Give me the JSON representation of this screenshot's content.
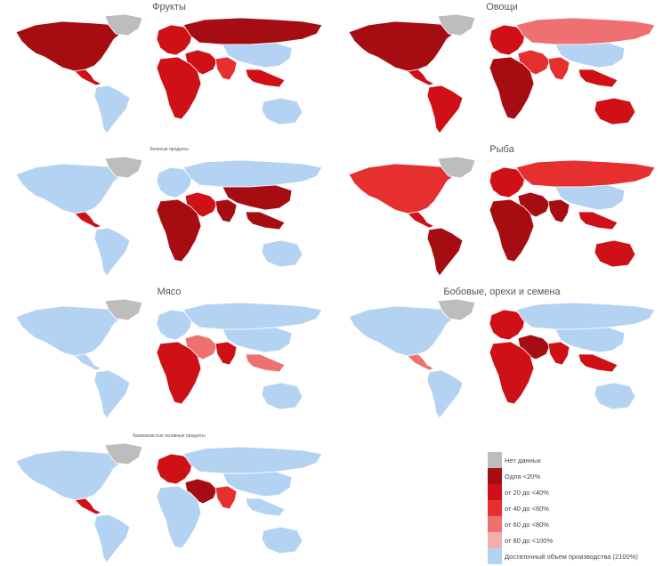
{
  "panels": [
    {
      "title": "Фрукты",
      "title_size": "normal",
      "ocean_fill": "#a9c8ec"
    },
    {
      "title": "Овощи",
      "title_size": "normal",
      "ocean_fill": "#a9c8ec"
    },
    {
      "title": "Зеленые продукты",
      "title_size": "small",
      "ocean_fill": "#a9c8ec"
    },
    {
      "title": "Рыба",
      "title_size": "normal",
      "ocean_fill": "#a9c8ec"
    },
    {
      "title": "Мясо",
      "title_size": "normal",
      "ocean_fill": "#a9c8ec"
    },
    {
      "title": "Бобовые, орехи и семена",
      "title_size": "normal",
      "ocean_fill": "#a9c8ec"
    },
    {
      "title": "Крахмалистые основные продукты",
      "title_size": "small",
      "ocean_fill": "#a9c8ec"
    }
  ],
  "colors": {
    "no_data": "#bdbdbd",
    "c20": "#a50d12",
    "c40": "#cf1016",
    "c60": "#e63030",
    "c80": "#ef7070",
    "c100": "#f5aeb0",
    "sufficient": "#b4d3f2",
    "border": "#ffffff"
  },
  "legend": {
    "items": [
      {
        "label": "Нет данных",
        "color": "#bdbdbd"
      },
      {
        "label": "Oдля <20%",
        "color": "#a50d12"
      },
      {
        "label": "от 20 до <40%",
        "color": "#cf1016"
      },
      {
        "label": "от 40 до <60%",
        "color": "#e63030"
      },
      {
        "label": "от 60 до <80%",
        "color": "#ef7070"
      },
      {
        "label": "от 80 до <100%",
        "color": "#f5aeb0"
      },
      {
        "label": "Достаточный объем производства (2100%)",
        "color": "#b4d3f2"
      }
    ]
  },
  "regions": [
    "north-america",
    "greenland",
    "central-america",
    "south-america",
    "europe",
    "russia",
    "middle-east",
    "africa",
    "south-asia",
    "east-asia",
    "southeast-asia",
    "australia"
  ],
  "map_levels": [
    {
      "north-america": "c20",
      "greenland": "no_data",
      "central-america": "c40",
      "south-america": "sufficient",
      "europe": "c40",
      "russia": "c20",
      "middle-east": "c40",
      "africa": "c40",
      "south-asia": "c60",
      "east-asia": "sufficient",
      "southeast-asia": "c40",
      "australia": "sufficient"
    },
    {
      "north-america": "c20",
      "greenland": "no_data",
      "central-america": "c40",
      "south-america": "c40",
      "europe": "c40",
      "russia": "c80",
      "middle-east": "c60",
      "africa": "c20",
      "south-asia": "c60",
      "east-asia": "sufficient",
      "southeast-asia": "c40",
      "australia": "c40"
    },
    {
      "north-america": "sufficient",
      "greenland": "no_data",
      "central-america": "c40",
      "south-america": "sufficient",
      "europe": "sufficient",
      "russia": "sufficient",
      "middle-east": "c40",
      "africa": "c20",
      "south-asia": "c20",
      "east-asia": "c20",
      "southeast-asia": "c20",
      "australia": "sufficient"
    },
    {
      "north-america": "c60",
      "greenland": "no_data",
      "central-america": "c40",
      "south-america": "c20",
      "europe": "c40",
      "russia": "c60",
      "middle-east": "c20",
      "africa": "c20",
      "south-asia": "c20",
      "east-asia": "sufficient",
      "southeast-asia": "c40",
      "australia": "c40"
    },
    {
      "north-america": "sufficient",
      "greenland": "no_data",
      "central-america": "sufficient",
      "south-america": "sufficient",
      "europe": "sufficient",
      "russia": "sufficient",
      "middle-east": "c80",
      "africa": "c40",
      "south-asia": "c40",
      "east-asia": "sufficient",
      "southeast-asia": "c80",
      "australia": "sufficient"
    },
    {
      "north-america": "sufficient",
      "greenland": "no_data",
      "central-america": "c80",
      "south-america": "sufficient",
      "europe": "c40",
      "russia": "sufficient",
      "middle-east": "c20",
      "africa": "c40",
      "south-asia": "c40",
      "east-asia": "sufficient",
      "southeast-asia": "c40",
      "australia": "sufficient"
    },
    {
      "north-america": "sufficient",
      "greenland": "no_data",
      "central-america": "c40",
      "south-america": "sufficient",
      "europe": "c40",
      "russia": "sufficient",
      "middle-east": "c20",
      "africa": "sufficient",
      "south-asia": "c60",
      "east-asia": "sufficient",
      "southeast-asia": "sufficient",
      "australia": "sufficient"
    }
  ]
}
